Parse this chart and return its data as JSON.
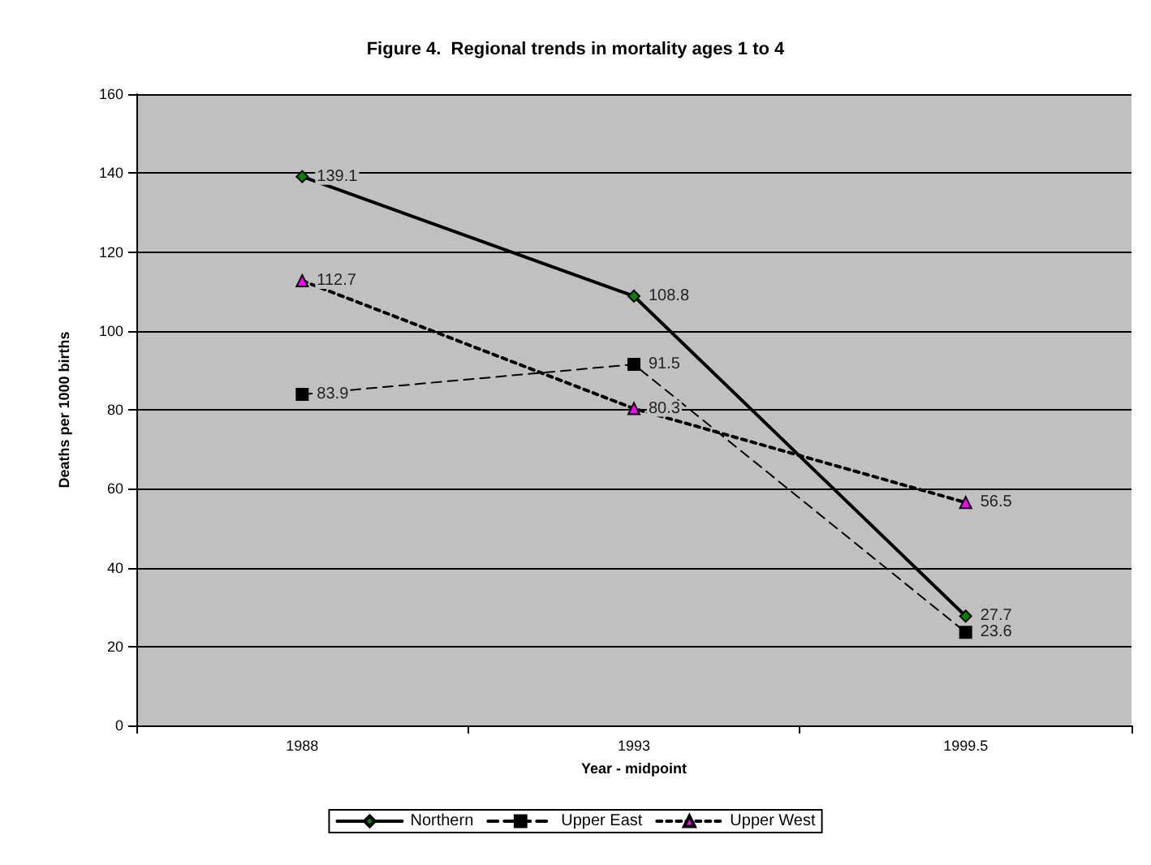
{
  "chart_data": {
    "type": "line",
    "title": "Figure 4.  Regional trends in mortality ages 1 to 4",
    "xlabel": "Year - midpoint",
    "ylabel": "Deaths per 1000 births",
    "categories": [
      "1988",
      "1993",
      "1999.5"
    ],
    "series": [
      {
        "name": "Northern",
        "color": "#008000",
        "marker": "diamond",
        "line_style": "solid",
        "values": [
          139.1,
          108.8,
          27.7
        ]
      },
      {
        "name": "Upper East",
        "color": "#000000",
        "marker": "square",
        "line_style": "dashed",
        "values": [
          83.9,
          91.5,
          23.6
        ]
      },
      {
        "name": "Upper West",
        "color": "#ff00ff",
        "marker": "triangle",
        "line_style": "dotted",
        "values": [
          112.7,
          80.3,
          56.5
        ]
      }
    ],
    "ylim": [
      0,
      160
    ],
    "yticks": [
      0,
      20,
      40,
      60,
      80,
      100,
      120,
      140,
      160
    ],
    "grid": "y",
    "legend": "bottom",
    "data_labels": true
  }
}
